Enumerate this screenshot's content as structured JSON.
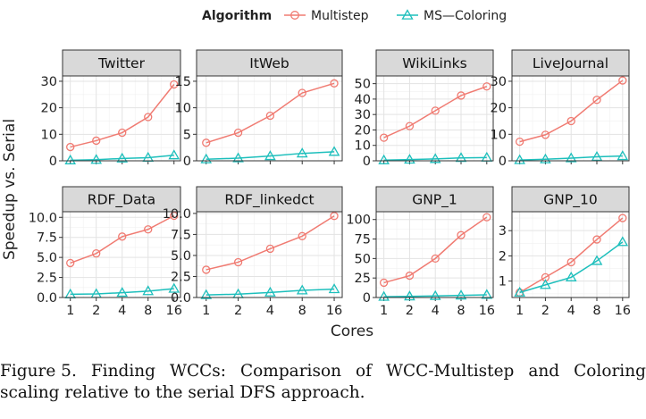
{
  "legend": {
    "title": "Algorithm",
    "items": [
      {
        "name": "Multistep",
        "color": "#f07b72",
        "marker": "circle"
      },
      {
        "name": "MS—Coloring",
        "color": "#1dbfbc",
        "marker": "triangle"
      }
    ]
  },
  "axes": {
    "xlabel": "Cores",
    "ylabel": "Speedup vs. Serial"
  },
  "x_ticks": [
    1,
    2,
    4,
    8,
    16
  ],
  "x_tick_labels": [
    "1",
    "2",
    "4",
    "8",
    "16"
  ],
  "chart_data": {
    "type": "line",
    "facets": [
      {
        "title": "Twitter",
        "ylim": [
          0,
          32
        ],
        "yticks": [
          0,
          10,
          20,
          30
        ],
        "ytick_labels": [
          "0",
          "10",
          "20",
          "30"
        ],
        "series": [
          {
            "name": "Multistep",
            "x": [
              1,
              2,
              4,
              8,
              16
            ],
            "values": [
              5.2,
              7.6,
              10.6,
              16.5,
              28.8
            ]
          },
          {
            "name": "MS—Coloring",
            "x": [
              1,
              2,
              4,
              8,
              16
            ],
            "values": [
              0.2,
              0.4,
              0.9,
              1.2,
              2.1
            ]
          }
        ]
      },
      {
        "title": "ItWeb",
        "ylim": [
          0,
          16
        ],
        "yticks": [
          0,
          5,
          10,
          15
        ],
        "ytick_labels": [
          "0",
          "5",
          "10",
          "15"
        ],
        "series": [
          {
            "name": "Multistep",
            "x": [
              1,
              2,
              4,
              8,
              16
            ],
            "values": [
              3.4,
              5.3,
              8.5,
              12.8,
              14.6
            ]
          },
          {
            "name": "MS—Coloring",
            "x": [
              1,
              2,
              4,
              8,
              16
            ],
            "values": [
              0.3,
              0.5,
              0.9,
              1.4,
              1.7
            ]
          }
        ]
      },
      {
        "title": "WikiLinks",
        "ylim": [
          0,
          55
        ],
        "yticks": [
          0,
          10,
          20,
          30,
          40,
          50
        ],
        "ytick_labels": [
          "0",
          "10",
          "20",
          "30",
          "40",
          "50"
        ],
        "series": [
          {
            "name": "Multistep",
            "x": [
              1,
              2,
              4,
              8,
              16
            ],
            "values": [
              15,
              22.5,
              32.5,
              42.3,
              48.2
            ]
          },
          {
            "name": "MS—Coloring",
            "x": [
              1,
              2,
              4,
              8,
              16
            ],
            "values": [
              0.4,
              0.8,
              1.2,
              1.9,
              2.1
            ]
          }
        ]
      },
      {
        "title": "LiveJournal",
        "ylim": [
          0,
          32
        ],
        "yticks": [
          0,
          10,
          20,
          30
        ],
        "ytick_labels": [
          "0",
          "10",
          "20",
          "30"
        ],
        "series": [
          {
            "name": "Multistep",
            "x": [
              1,
              2,
              4,
              8,
              16
            ],
            "values": [
              7.2,
              9.8,
              15.0,
              23.0,
              30.3
            ]
          },
          {
            "name": "MS—Coloring",
            "x": [
              1,
              2,
              4,
              8,
              16
            ],
            "values": [
              0.3,
              0.6,
              1.0,
              1.5,
              1.8
            ]
          }
        ]
      },
      {
        "title": "RDF_Data",
        "ylim": [
          0,
          10.7
        ],
        "yticks": [
          0,
          2.5,
          5,
          7.5,
          10
        ],
        "ytick_labels": [
          "0.0",
          "2.5",
          "5.0",
          "7.5",
          "10.0"
        ],
        "series": [
          {
            "name": "Multistep",
            "x": [
              1,
              2,
              4,
              8,
              16
            ],
            "values": [
              4.3,
              5.5,
              7.6,
              8.5,
              10.2
            ]
          },
          {
            "name": "MS—Coloring",
            "x": [
              1,
              2,
              4,
              8,
              16
            ],
            "values": [
              0.4,
              0.45,
              0.6,
              0.8,
              1.1
            ]
          }
        ]
      },
      {
        "title": "RDF_linkedct",
        "ylim": [
          0,
          10.2
        ],
        "yticks": [
          0,
          2.5,
          5,
          7.5,
          10
        ],
        "ytick_labels": [
          "0.0",
          "2.5",
          "5.0",
          "7.5",
          "10.0"
        ],
        "series": [
          {
            "name": "Multistep",
            "x": [
              1,
              2,
              4,
              8,
              16
            ],
            "values": [
              3.3,
              4.2,
              5.8,
              7.3,
              9.7
            ]
          },
          {
            "name": "MS—Coloring",
            "x": [
              1,
              2,
              4,
              8,
              16
            ],
            "values": [
              0.3,
              0.4,
              0.6,
              0.85,
              1.0
            ]
          }
        ]
      },
      {
        "title": "GNP_1",
        "ylim": [
          0,
          110
        ],
        "yticks": [
          0,
          25,
          50,
          75,
          100
        ],
        "ytick_labels": [
          "0",
          "25",
          "50",
          "75",
          "100"
        ],
        "series": [
          {
            "name": "Multistep",
            "x": [
              1,
              2,
              4,
              8,
              16
            ],
            "values": [
              19,
              28,
              50,
              80,
              103
            ]
          },
          {
            "name": "MS—Coloring",
            "x": [
              1,
              2,
              4,
              8,
              16
            ],
            "values": [
              1.0,
              1.5,
              2.0,
              2.7,
              3.5
            ]
          }
        ]
      },
      {
        "title": "GNP_10",
        "ylim": [
          0.35,
          3.75
        ],
        "yticks": [
          1,
          2,
          3
        ],
        "ytick_labels": [
          "1",
          "2",
          "3"
        ],
        "series": [
          {
            "name": "Multistep",
            "x": [
              1,
              2,
              4,
              8,
              16
            ],
            "values": [
              0.55,
              1.15,
              1.75,
              2.65,
              3.5
            ]
          },
          {
            "name": "MS—Coloring",
            "x": [
              1,
              2,
              4,
              8,
              16
            ],
            "values": [
              0.55,
              0.85,
              1.15,
              1.8,
              2.55
            ]
          }
        ]
      }
    ]
  },
  "caption": {
    "label": "Figure 5.",
    "words_line1": [
      "Finding",
      "WCCs:",
      "Comparison",
      "of",
      "WCC-Multistep",
      "and",
      "Coloring"
    ],
    "line2": "scaling relative to the serial DFS approach."
  }
}
